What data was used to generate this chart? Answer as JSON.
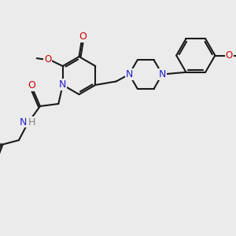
{
  "bg_color": "#ebebeb",
  "bond_color": "#1a1a1a",
  "N_color": "#2020cc",
  "O_color": "#cc0000",
  "H_color": "#808080",
  "bond_lw": 1.5,
  "figsize": [
    3.0,
    3.0
  ],
  "dpi": 100,
  "xlim": [
    0,
    10
  ],
  "ylim": [
    0,
    10
  ]
}
